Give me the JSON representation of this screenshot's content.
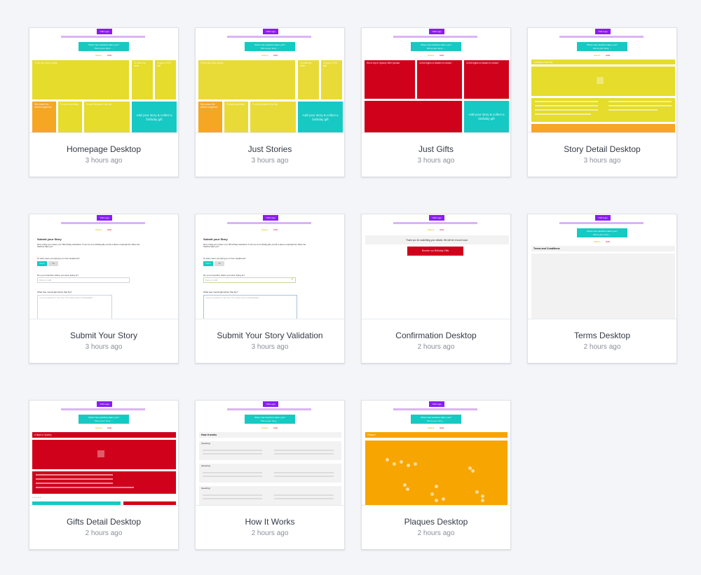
{
  "mini": {
    "logo": "Yldh Logo",
    "cta_line1": "Where has Heathrow taken you?",
    "cta_line2": "Tell us your story →",
    "tab_stories": "Stories",
    "tab_gifts": "Gifts",
    "stories_top": "To the top of the charts",
    "story_a": "To meet my sister",
    "story_b": "To give a TED talk",
    "story_c": "She where the stories happened",
    "story_d": "To meet my family",
    "story_e": "To my first date in the city",
    "add_story": "Add your story & collect a birthday gift",
    "gift_a": "Win a trip to Sydney With Qantas",
    "gift_b": "16 BA flights to Madrid to reward",
    "gift_c": "16 BA flights to Madrid to reward",
    "detail_heading": "To Write a Test Talk",
    "submit_heading": "Submit your Story",
    "submit_intro": "We're inviting you to share in our 70th birthday celebrations. To win one of our birthday gifts, just tell us about a meaningful trip. Where has Heathrow taken you?",
    "q1": "To start, were you flying to or from Heathrow?",
    "opt_from": "From",
    "opt_to": "To",
    "q2": "Do you remember where you were flying to?",
    "q2_placeholder": "Paris or LHR",
    "q3": "What was meaningful about that trip?",
    "q3_placeholder": "I met my partner in the city. The views were unforgettable...",
    "confirm_text": "Thank you for submitting your details. We will be in touch soon.",
    "browse_button": "Browse our Birthday Gifts",
    "terms_heading": "Terms and Conditions",
    "gift_detail_heading": "A flight to Sydney",
    "how_heading": "How it works",
    "how_sub": "[Heading]",
    "plaques_heading": "Plaques"
  },
  "cards": [
    {
      "title": "Homepage Desktop",
      "time": "3 hours ago"
    },
    {
      "title": "Just Stories",
      "time": "3 hours ago"
    },
    {
      "title": "Just Gifts",
      "time": "3 hours ago"
    },
    {
      "title": "Story Detail Desktop",
      "time": "3 hours ago"
    },
    {
      "title": "Submit Your Story",
      "time": "3 hours ago"
    },
    {
      "title": "Submit Your Story Validation",
      "time": "3 hours ago"
    },
    {
      "title": "Confirmation Desktop",
      "time": "2 hours ago"
    },
    {
      "title": "Terms Desktop",
      "time": "2 hours ago"
    },
    {
      "title": "Gifts Detail Desktop",
      "time": "2 hours ago"
    },
    {
      "title": "How It Works",
      "time": "2 hours ago"
    },
    {
      "title": "Plaques Desktop",
      "time": "2 hours ago"
    }
  ]
}
